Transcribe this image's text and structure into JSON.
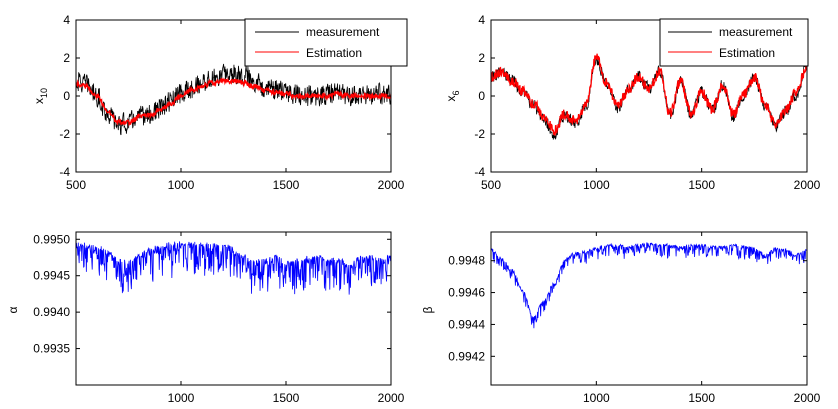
{
  "figure": {
    "panels": [
      {
        "id": "x10",
        "ylabel_base": "x",
        "ylabel_sub": "10",
        "legend": [
          "measurement",
          "Estimation"
        ]
      },
      {
        "id": "x6",
        "ylabel_base": "x",
        "ylabel_sub": "6",
        "legend": [
          "measurement",
          "Estimation"
        ]
      },
      {
        "id": "alpha",
        "ylabel_base": "α",
        "ylabel_sub": ""
      },
      {
        "id": "beta",
        "ylabel_base": "β",
        "ylabel_sub": ""
      }
    ]
  },
  "chart_data": [
    {
      "type": "line",
      "title": "",
      "xlabel": "",
      "ylabel": "x10",
      "xlim": [
        500,
        2000
      ],
      "ylim": [
        -4,
        4
      ],
      "xticks": [
        500,
        1000,
        1500,
        2000
      ],
      "yticks": [
        -4,
        -2,
        0,
        2,
        4
      ],
      "legend_position": "top-right",
      "colors": {
        "measurement": "#000000",
        "Estimation": "#ff0000"
      },
      "x": [
        500,
        550,
        600,
        650,
        700,
        750,
        800,
        850,
        900,
        950,
        1000,
        1050,
        1100,
        1150,
        1200,
        1250,
        1300,
        1350,
        1400,
        1450,
        1500,
        1550,
        1600,
        1650,
        1700,
        1750,
        1800,
        1850,
        1900,
        1950,
        2000
      ],
      "series": [
        {
          "name": "measurement",
          "noise_amplitude": 0.6,
          "values": [
            0.8,
            0.6,
            0.0,
            -0.9,
            -1.5,
            -1.4,
            -1.1,
            -1.0,
            -0.7,
            -0.3,
            0.1,
            0.4,
            0.7,
            0.9,
            1.1,
            1.2,
            1.1,
            0.8,
            0.5,
            0.3,
            0.2,
            0.1,
            0.0,
            0.0,
            0.1,
            0.2,
            0.0,
            0.1,
            0.0,
            0.1,
            0.0
          ]
        },
        {
          "name": "Estimation",
          "noise_amplitude": 0.15,
          "values": [
            0.7,
            0.5,
            0.0,
            -0.8,
            -1.4,
            -1.4,
            -1.1,
            -1.0,
            -0.7,
            -0.4,
            0.0,
            0.3,
            0.5,
            0.7,
            0.8,
            0.8,
            0.7,
            0.5,
            0.3,
            0.2,
            0.1,
            0.0,
            0.0,
            0.0,
            0.0,
            0.1,
            0.0,
            0.0,
            0.0,
            0.0,
            0.0
          ]
        }
      ]
    },
    {
      "type": "line",
      "title": "",
      "xlabel": "",
      "ylabel": "x6",
      "xlim": [
        500,
        2000
      ],
      "ylim": [
        -4,
        4
      ],
      "xticks": [
        500,
        1000,
        1500,
        2000
      ],
      "yticks": [
        -4,
        -2,
        0,
        2,
        4
      ],
      "legend_position": "top-right",
      "colors": {
        "measurement": "#000000",
        "Estimation": "#ff0000"
      },
      "x": [
        500,
        550,
        600,
        650,
        700,
        750,
        800,
        850,
        900,
        950,
        1000,
        1050,
        1100,
        1150,
        1200,
        1250,
        1300,
        1350,
        1400,
        1450,
        1500,
        1550,
        1600,
        1650,
        1700,
        1750,
        1800,
        1850,
        1900,
        1950,
        2000
      ],
      "series": [
        {
          "name": "measurement",
          "noise_amplitude": 0.35,
          "values": [
            1.0,
            1.3,
            0.8,
            0.2,
            -0.5,
            -1.2,
            -2.0,
            -1.0,
            -1.4,
            -0.6,
            2.0,
            0.6,
            -0.6,
            0.3,
            1.0,
            0.4,
            1.3,
            -1.0,
            0.8,
            -1.0,
            0.2,
            -0.8,
            0.6,
            -1.1,
            0.1,
            1.0,
            -0.5,
            -1.6,
            -0.8,
            0.1,
            1.6
          ]
        },
        {
          "name": "Estimation",
          "noise_amplitude": 0.3,
          "values": [
            1.0,
            1.3,
            0.8,
            0.3,
            -0.4,
            -1.1,
            -1.8,
            -0.9,
            -1.3,
            -0.5,
            2.0,
            0.7,
            -0.5,
            0.3,
            1.0,
            0.4,
            1.3,
            -0.9,
            0.8,
            -0.9,
            0.2,
            -0.7,
            0.6,
            -1.0,
            0.1,
            1.0,
            -0.4,
            -1.5,
            -0.7,
            0.2,
            1.6
          ]
        }
      ]
    },
    {
      "type": "line",
      "title": "",
      "xlabel": "",
      "ylabel": "α",
      "xlim": [
        500,
        2000
      ],
      "ylim": [
        0.993,
        0.9951
      ],
      "xticks": [
        1000,
        1500,
        2000
      ],
      "yticks": [
        0.9935,
        0.994,
        0.9945,
        0.995
      ],
      "colors": {
        "alpha": "#0000ff"
      },
      "x": [
        500,
        550,
        600,
        650,
        700,
        750,
        800,
        850,
        900,
        950,
        1000,
        1050,
        1100,
        1150,
        1200,
        1250,
        1300,
        1350,
        1400,
        1450,
        1500,
        1550,
        1600,
        1650,
        1700,
        1750,
        1800,
        1850,
        1900,
        1950,
        2000
      ],
      "series": [
        {
          "name": "alpha",
          "noise_amplitude": 0.00045,
          "values": [
            0.99493,
            0.99492,
            0.9949,
            0.99484,
            0.99472,
            0.99468,
            0.99478,
            0.99487,
            0.99491,
            0.99493,
            0.99494,
            0.99494,
            0.99494,
            0.99493,
            0.99492,
            0.99487,
            0.99476,
            0.9947,
            0.99472,
            0.99475,
            0.99468,
            0.99472,
            0.99474,
            0.99476,
            0.99472,
            0.99474,
            0.99465,
            0.99474,
            0.99478,
            0.99472,
            0.99476
          ]
        }
      ]
    },
    {
      "type": "line",
      "title": "",
      "xlabel": "",
      "ylabel": "β",
      "xlim": [
        500,
        2000
      ],
      "ylim": [
        0.99402,
        0.99498
      ],
      "xticks": [
        1000,
        1500,
        2000
      ],
      "yticks": [
        0.9942,
        0.9944,
        0.9946,
        0.9948
      ],
      "colors": {
        "beta": "#0000ff"
      },
      "x": [
        500,
        550,
        600,
        650,
        700,
        750,
        800,
        850,
        900,
        950,
        1000,
        1050,
        1100,
        1150,
        1200,
        1250,
        1300,
        1350,
        1400,
        1450,
        1500,
        1550,
        1600,
        1650,
        1700,
        1750,
        1800,
        1850,
        1900,
        1950,
        2000
      ],
      "series": [
        {
          "name": "beta",
          "noise_amplitude": 8e-05,
          "values": [
            0.99487,
            0.99482,
            0.99474,
            0.99462,
            0.99445,
            0.99455,
            0.99466,
            0.99481,
            0.99485,
            0.99486,
            0.99488,
            0.9949,
            0.9949,
            0.99489,
            0.9949,
            0.99491,
            0.9949,
            0.9949,
            0.99489,
            0.9949,
            0.9949,
            0.99489,
            0.99489,
            0.9949,
            0.99489,
            0.99488,
            0.99484,
            0.99488,
            0.99487,
            0.99484,
            0.99487
          ]
        }
      ]
    }
  ]
}
